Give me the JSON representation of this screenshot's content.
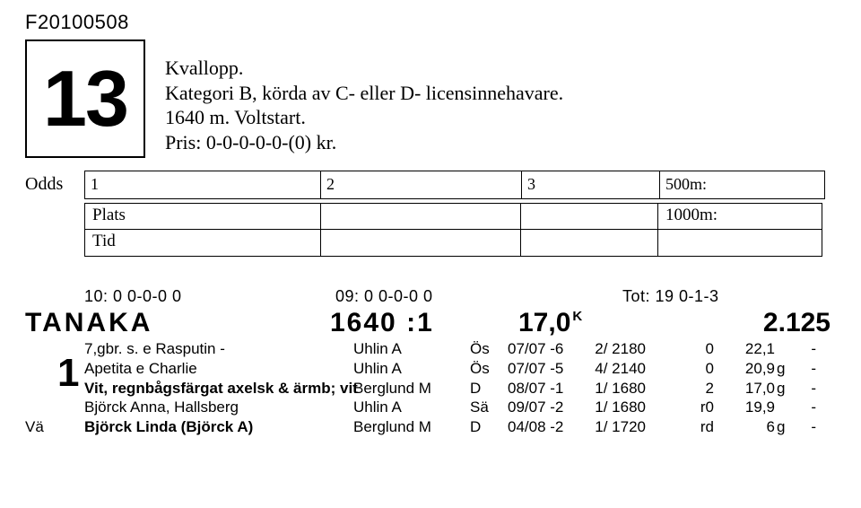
{
  "doc_id": "F20100508",
  "race_number": "13",
  "description": {
    "line1": "Kvallopp.",
    "line2": "Kategori B, körda av C- eller D- licensinnehavare.",
    "line3": "1640 m. Voltstart.",
    "line4": "Pris: 0-0-0-0-0-(0) kr."
  },
  "odds_block": {
    "odds_label": "Odds",
    "c1": "1",
    "c2": "2",
    "c3": "3",
    "c4_label": "500m:",
    "plats_label": "Plats",
    "tid_label": "Tid",
    "r_label": "1000m:"
  },
  "stats": {
    "s1": "10: 0  0-0-0    0",
    "s2": "09: 0  0-0-0    0",
    "s3": "Tot: 19  0-1-3"
  },
  "horse": {
    "name": "TANAKA",
    "dist": "1640 :1",
    "time": "17,0",
    "time_sup": "K",
    "odds": "2.125"
  },
  "entry_number": "1",
  "rows": [
    {
      "prefix": "",
      "left": "7,gbr. s. e Rasputin -",
      "driver": "Uhlin A",
      "track": "Ös",
      "date": "07/07 -6",
      "place": "2/ 2180",
      "dist": "0",
      "pos": "22,1",
      "suf": "",
      "dash": "-",
      "bold": false
    },
    {
      "prefix": "",
      "left": "Apetita e Charlie",
      "driver": "Uhlin A",
      "track": "Ös",
      "date": "07/07 -5",
      "place": "4/ 2140",
      "dist": "0",
      "pos": "20,9",
      "suf": "g",
      "dash": "-",
      "bold": false
    },
    {
      "prefix": "",
      "left": "Vit, regnbågsfärgat axelsk & ärmb; vit",
      "driver": "Berglund M",
      "track": "D",
      "date": "08/07 -1",
      "place": "1/ 1680",
      "dist": "2",
      "pos": "17,0",
      "suf": "g",
      "dash": "-",
      "bold": true
    },
    {
      "prefix": "",
      "left": "Björck Anna, Hallsberg",
      "driver": "Uhlin A",
      "track": "Sä",
      "date": "09/07 -2",
      "place": "1/ 1680",
      "dist": "r0",
      "pos": "19,9",
      "suf": "",
      "dash": "-",
      "bold": false
    },
    {
      "prefix": "Vä",
      "left": "Björck Linda (Björck A)",
      "driver": "Berglund M",
      "track": "D",
      "date": "04/08 -2",
      "place": "1/ 1720",
      "dist": "rd",
      "pos": "6",
      "suf": "g",
      "dash": "-",
      "bold": true
    }
  ]
}
